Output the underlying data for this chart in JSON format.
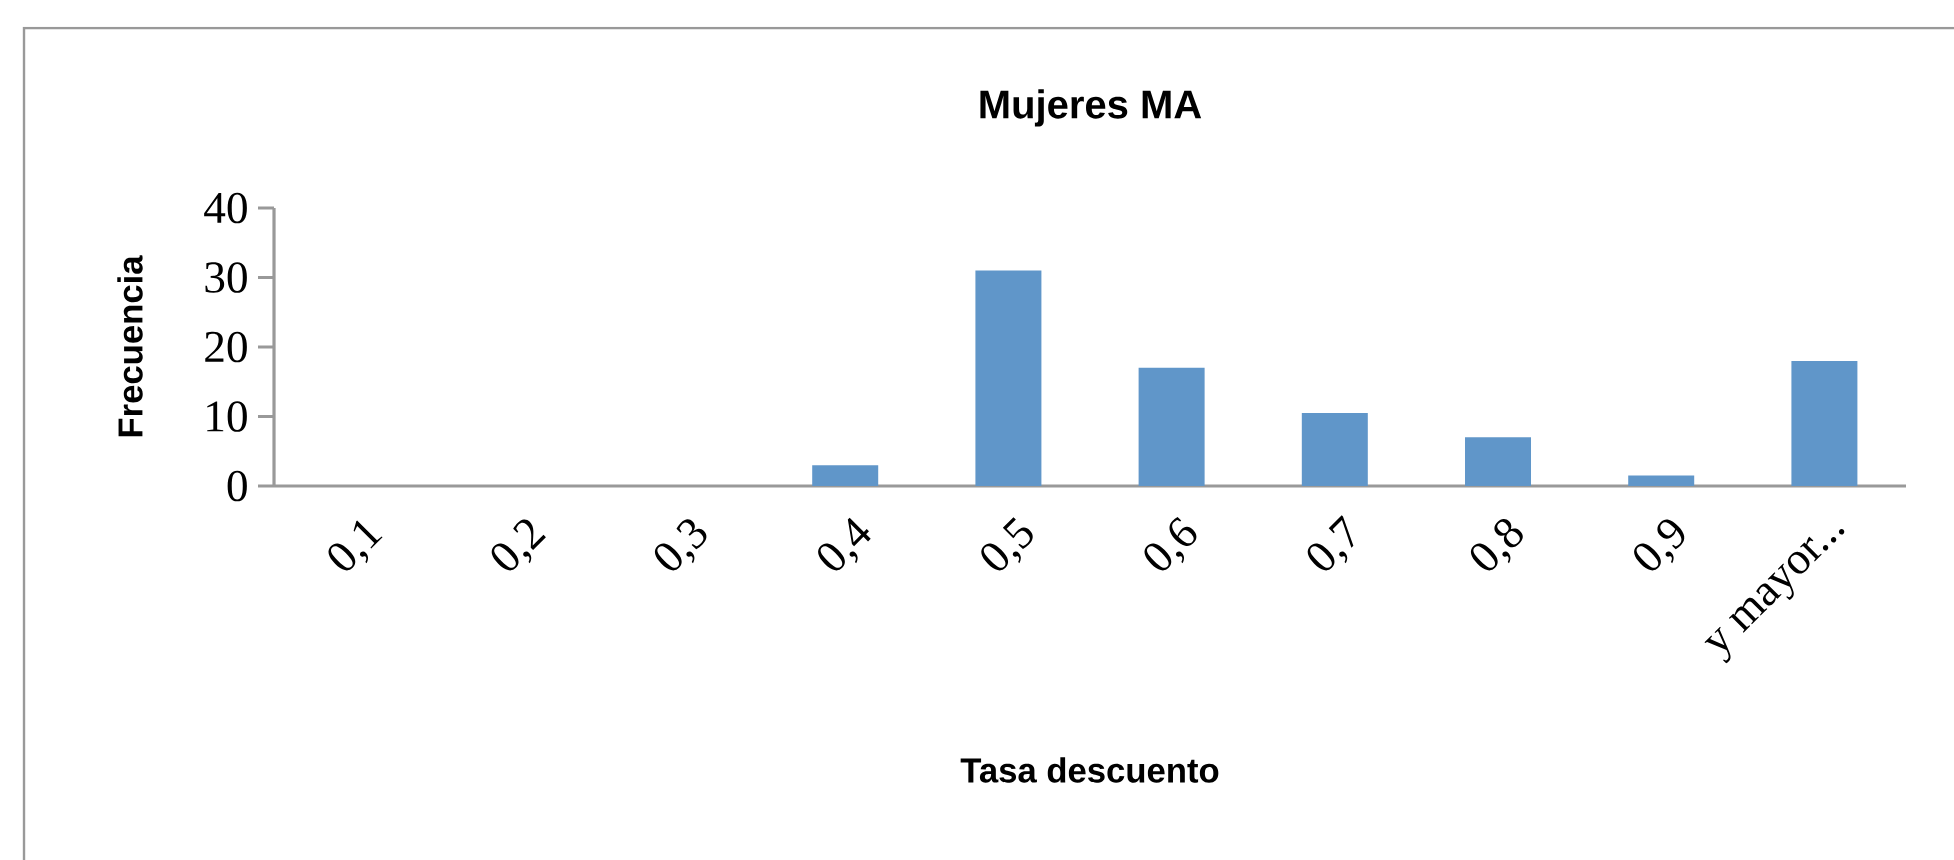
{
  "chart_data": {
    "type": "bar",
    "title": "Mujeres MA",
    "xlabel": "Tasa descuento",
    "ylabel": "Frecuencia",
    "categories": [
      "0,1",
      "0,2",
      "0,3",
      "0,4",
      "0,5",
      "0,6",
      "0,7",
      "0,8",
      "0,9",
      "y mayor..."
    ],
    "values": [
      0,
      0,
      0,
      3,
      31,
      17,
      10.5,
      7,
      1.5,
      18
    ],
    "color": "#6096c9",
    "ylim": [
      0,
      40
    ],
    "yticks": [
      0,
      10,
      20,
      30,
      40
    ],
    "grid": false
  }
}
